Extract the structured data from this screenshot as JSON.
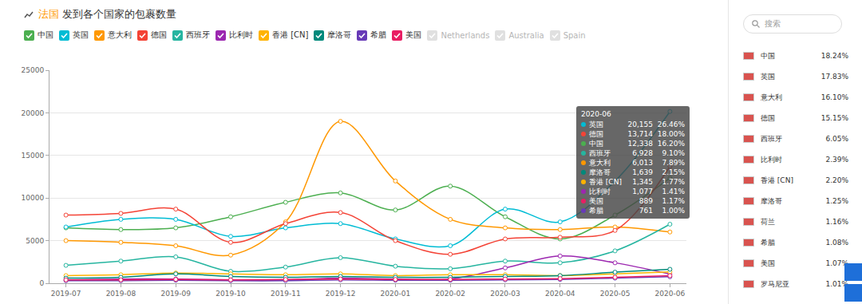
{
  "chart_data": {
    "type": "line",
    "title": "法国 发到各个国家的包裹数量",
    "categories": [
      "2019-07",
      "2019-08",
      "2019-09",
      "2019-10",
      "2019-11",
      "2019-12",
      "2020-01",
      "2020-02",
      "2020-03",
      "2020-04",
      "2020-05",
      "2020-06"
    ],
    "series": [
      {
        "name": "中国",
        "color": "#4caf50",
        "values": [
          6500,
          6300,
          6500,
          7800,
          9500,
          10600,
          8600,
          11400,
          7800,
          5200,
          8000,
          12338
        ]
      },
      {
        "name": "英国",
        "color": "#00bcd4",
        "values": [
          6600,
          7500,
          7500,
          5500,
          6500,
          7000,
          5200,
          4400,
          8700,
          7200,
          12000,
          20155
        ]
      },
      {
        "name": "意大利",
        "color": "#ff9800",
        "values": [
          5000,
          4800,
          4400,
          3300,
          7200,
          19000,
          12000,
          7500,
          6500,
          6300,
          6600,
          6013
        ]
      },
      {
        "name": "德国",
        "color": "#f44336",
        "values": [
          8000,
          8200,
          8700,
          4800,
          7000,
          8300,
          5000,
          3400,
          5200,
          5400,
          6200,
          13714
        ]
      },
      {
        "name": "西班牙",
        "color": "#26b5a0",
        "values": [
          2100,
          2600,
          3100,
          1400,
          1900,
          3000,
          2000,
          1700,
          2600,
          2400,
          3800,
          6928
        ]
      },
      {
        "name": "比利时",
        "color": "#9c27b0",
        "values": [
          400,
          500,
          500,
          400,
          400,
          600,
          500,
          500,
          1800,
          3200,
          2400,
          1077
        ]
      },
      {
        "name": "香港 [CN]",
        "color": "#ffb300",
        "values": [
          900,
          1000,
          1200,
          1100,
          1000,
          1100,
          900,
          1000,
          1000,
          900,
          1100,
          1345
        ]
      },
      {
        "name": "摩洛哥",
        "color": "#00897b",
        "values": [
          600,
          700,
          1100,
          800,
          700,
          800,
          700,
          700,
          800,
          900,
          1300,
          1639
        ]
      },
      {
        "name": "希腊",
        "color": "#673ab7",
        "values": [
          300,
          300,
          350,
          300,
          300,
          400,
          350,
          350,
          400,
          450,
          600,
          761
        ]
      },
      {
        "name": "美国",
        "color": "#e91e63",
        "values": [
          400,
          400,
          450,
          400,
          450,
          500,
          450,
          450,
          500,
          550,
          700,
          889
        ]
      }
    ],
    "ylim": [
      0,
      25000
    ],
    "yticks": [
      0,
      5000,
      10000,
      15000,
      20000,
      25000
    ],
    "grid": true,
    "legend": "top",
    "marker": "circle",
    "line_style": "smooth",
    "inactive_legend": [
      "Netherlands",
      "Australia",
      "Spain"
    ],
    "tooltip": {
      "title": "2020-06",
      "rows": [
        {
          "name": "英国",
          "value": "20,155",
          "share": "26.46%"
        },
        {
          "name": "德国",
          "value": "13,714",
          "share": "18.00%"
        },
        {
          "name": "中国",
          "value": "12,338",
          "share": "16.20%"
        },
        {
          "name": "西班牙",
          "value": "6,928",
          "share": "9.10%"
        },
        {
          "name": "意大利",
          "value": "6,013",
          "share": "7.89%"
        },
        {
          "name": "摩洛哥",
          "value": "1,639",
          "share": "2.15%"
        },
        {
          "name": "香港 [CN]",
          "value": "1,345",
          "share": "1.77%"
        },
        {
          "name": "比利时",
          "value": "1,077",
          "share": "1.41%"
        },
        {
          "name": "美国",
          "value": "889",
          "share": "1.17%"
        },
        {
          "name": "希腊",
          "value": "761",
          "share": "1.00%"
        }
      ]
    }
  },
  "side_panel": {
    "search_placeholder": "搜索",
    "items": [
      {
        "name": "中国",
        "share": "18.24%"
      },
      {
        "name": "英国",
        "share": "17.83%"
      },
      {
        "name": "意大利",
        "share": "16.10%"
      },
      {
        "name": "德国",
        "share": "15.15%"
      },
      {
        "name": "西班牙",
        "share": "6.05%"
      },
      {
        "name": "比利时",
        "share": "2.39%"
      },
      {
        "name": "香港 [CN]",
        "share": "2.20%"
      },
      {
        "name": "摩洛哥",
        "share": "1.25%"
      },
      {
        "name": "荷兰",
        "share": "1.16%"
      },
      {
        "name": "希腊",
        "share": "1.08%"
      },
      {
        "name": "美国",
        "share": "1.07%"
      },
      {
        "name": "罗马尼亚",
        "share": "1.01%"
      }
    ]
  }
}
